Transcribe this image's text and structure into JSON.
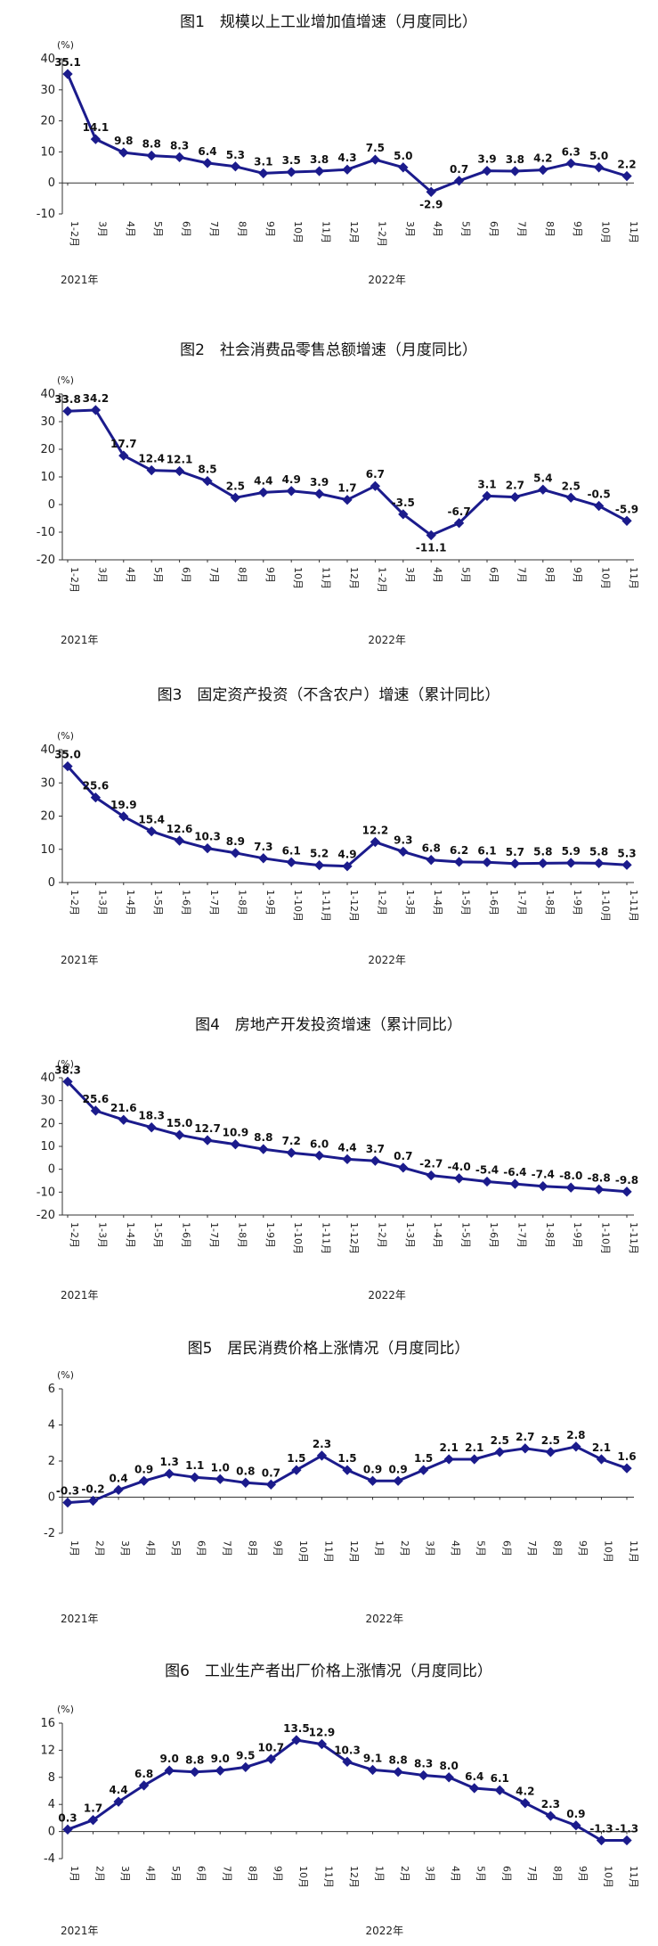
{
  "colors": {
    "line": "#1b1b8c",
    "axis": "#333333"
  },
  "chart_data": [
    {
      "type": "line",
      "title": "图1　规模以上工业增加值增速（月度同比）",
      "unit_label": "(%)",
      "categories": [
        "1-2月",
        "3月",
        "4月",
        "5月",
        "6月",
        "7月",
        "8月",
        "9月",
        "10月",
        "11月",
        "12月",
        "1-2月",
        "3月",
        "4月",
        "5月",
        "6月",
        "7月",
        "8月",
        "9月",
        "10月",
        "11月"
      ],
      "values": [
        35.1,
        14.1,
        9.8,
        8.8,
        8.3,
        6.4,
        5.3,
        3.1,
        3.5,
        3.8,
        4.3,
        7.5,
        5.0,
        -2.9,
        0.7,
        3.9,
        3.8,
        4.2,
        6.3,
        5.0,
        2.2
      ],
      "value_labels": [
        "35.1",
        "14.1",
        "9.8",
        "8.8",
        "8.3",
        "6.4",
        "5.3",
        "3.1",
        "3.5",
        "3.8",
        "4.3",
        "7.5",
        "5.0",
        "-2.9",
        "0.7",
        "3.9",
        "3.8",
        "4.2",
        "6.3",
        "5.0",
        "2.2"
      ],
      "ylim": [
        -10,
        40
      ],
      "yticks": [
        "40",
        "30",
        "20",
        "10",
        "0",
        "-10"
      ],
      "years": [
        "2021年",
        "2022年"
      ],
      "legend": "none",
      "grid": false
    },
    {
      "type": "line",
      "title": "图2　社会消费品零售总额增速（月度同比）",
      "unit_label": "(%)",
      "categories": [
        "1-2月",
        "3月",
        "4月",
        "5月",
        "6月",
        "7月",
        "8月",
        "9月",
        "10月",
        "11月",
        "12月",
        "1-2月",
        "3月",
        "4月",
        "5月",
        "6月",
        "7月",
        "8月",
        "9月",
        "10月",
        "11月"
      ],
      "values": [
        33.8,
        34.2,
        17.7,
        12.4,
        12.1,
        8.5,
        2.5,
        4.4,
        4.9,
        3.9,
        1.7,
        6.7,
        -3.5,
        -11.1,
        -6.7,
        3.1,
        2.7,
        5.4,
        2.5,
        -0.5,
        -5.9
      ],
      "value_labels": [
        "33.8",
        "34.2",
        "17.7",
        "12.4",
        "12.1",
        "8.5",
        "2.5",
        "4.4",
        "4.9",
        "3.9",
        "1.7",
        "6.7",
        "-3.5",
        "-11.1",
        "-6.7",
        "3.1",
        "2.7",
        "5.4",
        "2.5",
        "-0.5",
        "-5.9"
      ],
      "ylim": [
        -20,
        40
      ],
      "yticks": [
        "40",
        "30",
        "20",
        "10",
        "0",
        "-10",
        "-20"
      ],
      "years": [
        "2021年",
        "2022年"
      ],
      "legend": "none",
      "grid": false
    },
    {
      "type": "line",
      "title": "图3　固定资产投资（不含农户）增速（累计同比）",
      "unit_label": "(%)",
      "categories": [
        "1-2月",
        "1-3月",
        "1-4月",
        "1-5月",
        "1-6月",
        "1-7月",
        "1-8月",
        "1-9月",
        "1-10月",
        "1-11月",
        "1-12月",
        "1-2月",
        "1-3月",
        "1-4月",
        "1-5月",
        "1-6月",
        "1-7月",
        "1-8月",
        "1-9月",
        "1-10月",
        "1-11月"
      ],
      "values": [
        35.0,
        25.6,
        19.9,
        15.4,
        12.6,
        10.3,
        8.9,
        7.3,
        6.1,
        5.2,
        4.9,
        12.2,
        9.3,
        6.8,
        6.2,
        6.1,
        5.7,
        5.8,
        5.9,
        5.8,
        5.3
      ],
      "value_labels": [
        "35.0",
        "25.6",
        "19.9",
        "15.4",
        "12.6",
        "10.3",
        "8.9",
        "7.3",
        "6.1",
        "5.2",
        "4.9",
        "12.2",
        "9.3",
        "6.8",
        "6.2",
        "6.1",
        "5.7",
        "5.8",
        "5.9",
        "5.8",
        "5.3"
      ],
      "ylim": [
        0,
        40
      ],
      "yticks": [
        "40",
        "30",
        "20",
        "10",
        "0"
      ],
      "years": [
        "2021年",
        "2022年"
      ],
      "legend": "none",
      "grid": false
    },
    {
      "type": "line",
      "title": "图4　房地产开发投资增速（累计同比）",
      "unit_label": "(%)",
      "categories": [
        "1-2月",
        "1-3月",
        "1-4月",
        "1-5月",
        "1-6月",
        "1-7月",
        "1-8月",
        "1-9月",
        "1-10月",
        "1-11月",
        "1-12月",
        "1-2月",
        "1-3月",
        "1-4月",
        "1-5月",
        "1-6月",
        "1-7月",
        "1-8月",
        "1-9月",
        "1-10月",
        "1-11月"
      ],
      "values": [
        38.3,
        25.6,
        21.6,
        18.3,
        15.0,
        12.7,
        10.9,
        8.8,
        7.2,
        6.0,
        4.4,
        3.7,
        0.7,
        -2.7,
        -4.0,
        -5.4,
        -6.4,
        -7.4,
        -8.0,
        -8.8,
        -9.8
      ],
      "value_labels": [
        "38.3",
        "25.6",
        "21.6",
        "18.3",
        "15.0",
        "12.7",
        "10.9",
        "8.8",
        "7.2",
        "6.0",
        "4.4",
        "3.7",
        "0.7",
        "-2.7",
        "-4.0",
        "-5.4",
        "-6.4",
        "-7.4",
        "-8.0",
        "-8.8",
        "-9.8"
      ],
      "ylim": [
        -20,
        40
      ],
      "yticks": [
        "40",
        "30",
        "20",
        "10",
        "0",
        "-10",
        "-20"
      ],
      "years": [
        "2021年",
        "2022年"
      ],
      "legend": "none",
      "grid": false
    },
    {
      "type": "line",
      "title": "图5　居民消费价格上涨情况（月度同比）",
      "unit_label": "(%)",
      "categories": [
        "1月",
        "2月",
        "3月",
        "4月",
        "5月",
        "6月",
        "7月",
        "8月",
        "9月",
        "10月",
        "11月",
        "12月",
        "1月",
        "2月",
        "3月",
        "4月",
        "5月",
        "6月",
        "7月",
        "8月",
        "9月",
        "10月",
        "11月"
      ],
      "values": [
        -0.3,
        -0.2,
        0.4,
        0.9,
        1.3,
        1.1,
        1.0,
        0.8,
        0.7,
        1.5,
        2.3,
        1.5,
        0.9,
        0.9,
        1.5,
        2.1,
        2.1,
        2.5,
        2.7,
        2.5,
        2.8,
        2.1,
        1.6
      ],
      "value_labels": [
        "-0.3",
        "-0.2",
        "0.4",
        "0.9",
        "1.3",
        "1.1",
        "1.0",
        "0.8",
        "0.7",
        "1.5",
        "2.3",
        "1.5",
        "0.9",
        "0.9",
        "1.5",
        "2.1",
        "2.1",
        "2.5",
        "2.7",
        "2.5",
        "2.8",
        "2.1",
        "1.6"
      ],
      "ylim": [
        -2,
        6
      ],
      "yticks": [
        "6",
        "4",
        "2",
        "0",
        "-2"
      ],
      "years": [
        "2021年",
        "2022年"
      ],
      "legend": "none",
      "grid": false
    },
    {
      "type": "line",
      "title": "图6　工业生产者出厂价格上涨情况（月度同比）",
      "unit_label": "(%)",
      "categories": [
        "1月",
        "2月",
        "3月",
        "4月",
        "5月",
        "6月",
        "7月",
        "8月",
        "9月",
        "10月",
        "11月",
        "12月",
        "1月",
        "2月",
        "3月",
        "4月",
        "5月",
        "6月",
        "7月",
        "8月",
        "9月",
        "10月",
        "11月"
      ],
      "values": [
        0.3,
        1.7,
        4.4,
        6.8,
        9.0,
        8.8,
        9.0,
        9.5,
        10.7,
        13.5,
        12.9,
        10.3,
        9.1,
        8.8,
        8.3,
        8.0,
        6.4,
        6.1,
        4.2,
        2.3,
        0.9,
        -1.3,
        -1.3
      ],
      "value_labels": [
        "0.3",
        "1.7",
        "4.4",
        "6.8",
        "9.0",
        "8.8",
        "9.0",
        "9.5",
        "10.7",
        "13.5",
        "12.9",
        "10.3",
        "9.1",
        "8.8",
        "8.3",
        "8.0",
        "6.4",
        "6.1",
        "4.2",
        "2.3",
        "0.9",
        "-1.3",
        "-1.3"
      ],
      "ylim": [
        -4,
        16
      ],
      "yticks": [
        "16",
        "12",
        "8",
        "4",
        "0",
        "-4"
      ],
      "years": [
        "2021年",
        "2022年"
      ],
      "legend": "none",
      "grid": false
    }
  ]
}
